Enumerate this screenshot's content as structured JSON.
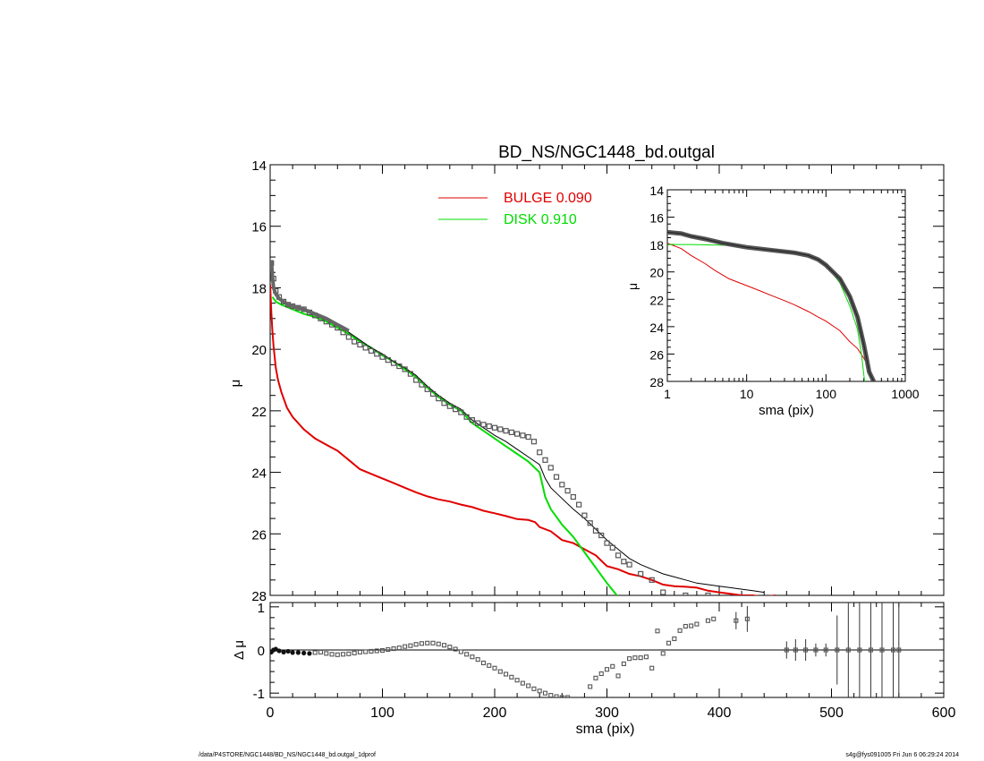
{
  "footer": {
    "left": "/data/P4STORE/NGC1448/BD_NS/NGC1448_bd.outgal_1dprof",
    "right": "s4g@fys091005  Fri Jun  6 06:29:24 2014"
  },
  "colors": {
    "bulge": "#e00000",
    "disk": "#00dd00",
    "total": "#000000",
    "data": "#555555"
  },
  "chart_data": [
    {
      "id": "main",
      "type": "scatter",
      "title": "BD_NS/NGC1448_bd.outgal",
      "xlabel": "",
      "ylabel": "μ",
      "xlim": [
        0,
        600
      ],
      "ylim": [
        28,
        14
      ],
      "yticks": [
        "14",
        "16",
        "18",
        "20",
        "22",
        "24",
        "26",
        "28"
      ],
      "legend": [
        {
          "label": "BULGE",
          "value": "0.090",
          "color": "#e00000"
        },
        {
          "label": "DISK",
          "value": "0.910",
          "color": "#00dd00"
        }
      ],
      "series": [
        {
          "name": "BULGE 0.090",
          "x": [
            0,
            1,
            2,
            3,
            5,
            7,
            10,
            15,
            20,
            30,
            40,
            50,
            60,
            70,
            80,
            90,
            100,
            110,
            120,
            130,
            140,
            150,
            160,
            170,
            180,
            190,
            200,
            210,
            220,
            230,
            236,
            240,
            250,
            260,
            270,
            280,
            290,
            300,
            310,
            320,
            330,
            340,
            350,
            360,
            370,
            380,
            390,
            400,
            410,
            420,
            430,
            440,
            450
          ],
          "y": [
            17.9,
            18.8,
            19.4,
            19.9,
            20.6,
            21.0,
            21.4,
            21.9,
            22.2,
            22.6,
            22.9,
            23.1,
            23.3,
            23.6,
            23.9,
            24.05,
            24.2,
            24.35,
            24.5,
            24.65,
            24.78,
            24.88,
            24.95,
            25.05,
            25.13,
            25.25,
            25.33,
            25.42,
            25.52,
            25.55,
            25.62,
            25.78,
            25.92,
            26.2,
            26.3,
            26.5,
            26.7,
            27.05,
            27.15,
            27.3,
            27.38,
            27.5,
            27.65,
            27.7,
            27.72,
            27.75,
            27.85,
            27.9,
            27.95,
            28.0,
            28.0,
            28.05,
            28.0
          ]
        },
        {
          "name": "DISK 0.910",
          "x": [
            2,
            5,
            10,
            20,
            30,
            40,
            50,
            60,
            70,
            80,
            90,
            100,
            110,
            120,
            130,
            140,
            150,
            160,
            170,
            180,
            190,
            200,
            210,
            220,
            230,
            240,
            245,
            250,
            260,
            270,
            280,
            290,
            300,
            310
          ],
          "y": [
            18.3,
            18.45,
            18.55,
            18.7,
            18.85,
            18.95,
            19.1,
            19.3,
            19.5,
            19.75,
            19.95,
            20.2,
            20.4,
            20.65,
            20.9,
            21.25,
            21.55,
            21.8,
            22.0,
            22.4,
            22.65,
            22.9,
            23.15,
            23.4,
            23.65,
            24.0,
            24.8,
            25.2,
            25.7,
            26.1,
            26.6,
            27.1,
            27.6,
            28.05
          ]
        },
        {
          "name": "",
          "x": [
            0,
            2,
            5,
            10,
            20,
            30,
            40,
            50,
            60,
            70,
            80,
            90,
            100,
            110,
            120,
            130,
            140,
            150,
            160,
            170,
            180,
            190,
            200,
            210,
            220,
            230,
            240,
            245,
            250,
            260,
            270,
            280,
            290,
            300,
            310,
            320,
            330,
            340,
            350,
            360,
            370,
            380,
            390,
            400,
            410,
            420,
            430,
            440
          ],
          "y": [
            17.1,
            17.6,
            18.2,
            18.4,
            18.6,
            18.75,
            18.9,
            19.05,
            19.2,
            19.45,
            19.7,
            19.95,
            20.15,
            20.4,
            20.6,
            20.85,
            21.2,
            21.5,
            21.75,
            21.95,
            22.3,
            22.55,
            22.8,
            23.0,
            23.25,
            23.5,
            23.75,
            24.2,
            24.5,
            24.85,
            25.2,
            25.5,
            25.85,
            26.2,
            26.5,
            26.8,
            27.0,
            27.15,
            27.3,
            27.4,
            27.5,
            27.6,
            27.65,
            27.7,
            27.75,
            27.8,
            27.85,
            27.9
          ]
        },
        {
          "name": "",
          "x": [
            1,
            3,
            5,
            8,
            12,
            16,
            20,
            25,
            30,
            35,
            40,
            45,
            50,
            55,
            60,
            65,
            70,
            75,
            80,
            85,
            90,
            95,
            100,
            105,
            110,
            115,
            120,
            125,
            130,
            135,
            140,
            145,
            150,
            155,
            160,
            165,
            170,
            175,
            180,
            185,
            190,
            195,
            200,
            205,
            210,
            215,
            220,
            225,
            230,
            235,
            240,
            245,
            250,
            255,
            260,
            265,
            270,
            275,
            280,
            285,
            290,
            295,
            300,
            305,
            310,
            315,
            320,
            330,
            340,
            350,
            370,
            390
          ],
          "y": [
            17.2,
            17.7,
            18.1,
            18.3,
            18.45,
            18.55,
            18.6,
            18.65,
            18.7,
            18.8,
            18.9,
            19.0,
            19.1,
            19.2,
            19.3,
            19.45,
            19.6,
            19.75,
            19.85,
            19.95,
            20.05,
            20.15,
            20.25,
            20.35,
            20.45,
            20.55,
            20.65,
            20.8,
            21.0,
            21.15,
            21.3,
            21.45,
            21.6,
            21.75,
            21.85,
            21.95,
            22.05,
            22.2,
            22.3,
            22.4,
            22.45,
            22.5,
            22.55,
            22.6,
            22.65,
            22.7,
            22.75,
            22.8,
            22.85,
            23.0,
            23.35,
            23.6,
            23.85,
            24.15,
            24.4,
            24.6,
            24.8,
            25.05,
            25.4,
            25.65,
            25.9,
            26.05,
            26.3,
            26.45,
            26.7,
            26.9,
            27.0,
            27.3,
            27.5,
            27.9,
            28.0,
            28.0
          ]
        }
      ]
    },
    {
      "id": "inset",
      "type": "line",
      "xlabel": "sma (pix)",
      "ylabel": "μ",
      "xscale": "log",
      "xlim": [
        1,
        1000
      ],
      "ylim": [
        28,
        14
      ],
      "xticks": [
        "1",
        "10",
        "100",
        "1000"
      ],
      "yticks": [
        "14",
        "16",
        "18",
        "20",
        "22",
        "24",
        "26",
        "28"
      ],
      "series": [
        {
          "name": "",
          "x": [
            1,
            1.5,
            2,
            3,
            4,
            6,
            10,
            15,
            20,
            30,
            40,
            60,
            80,
            100,
            150,
            200,
            250,
            300,
            350,
            400
          ],
          "y": [
            17.9,
            18.3,
            18.8,
            19.4,
            19.9,
            20.5,
            21.0,
            21.4,
            21.7,
            22.1,
            22.4,
            22.9,
            23.3,
            23.6,
            24.3,
            25.1,
            25.6,
            26.3,
            27.0,
            28.0
          ]
        },
        {
          "name": "",
          "x": [
            1,
            2,
            5,
            10,
            20,
            40,
            60,
            80,
            100,
            150,
            200,
            250,
            280,
            310
          ],
          "y": [
            18.0,
            18.0,
            18.05,
            18.1,
            18.4,
            18.65,
            18.9,
            19.1,
            19.5,
            20.8,
            22.5,
            24.2,
            26.0,
            28.2
          ]
        },
        {
          "name": "",
          "x": [
            1,
            1.5,
            2,
            3,
            5,
            10,
            20,
            40,
            60,
            80,
            100,
            150,
            200,
            250,
            300,
            330,
            350,
            400,
            450
          ],
          "y": [
            17.1,
            17.2,
            17.4,
            17.6,
            17.9,
            18.2,
            18.4,
            18.6,
            18.8,
            19.1,
            19.5,
            20.5,
            21.8,
            23.3,
            25.3,
            26.5,
            27.3,
            28.0,
            28.3
          ]
        }
      ]
    },
    {
      "id": "residual",
      "type": "scatter",
      "xlabel": "sma (pix)",
      "ylabel": "Δ μ",
      "xlim": [
        0,
        600
      ],
      "ylim": [
        -1.1,
        1.1
      ],
      "xticks": [
        "0",
        "100",
        "200",
        "300",
        "400",
        "500",
        "600"
      ],
      "yticks": [
        "1",
        "0",
        "-1"
      ],
      "series": [
        {
          "name": "",
          "x": [
            1,
            3,
            5,
            8,
            12,
            16,
            20,
            25,
            30,
            35,
            40,
            45,
            50,
            55,
            60,
            65,
            70,
            75,
            80,
            85,
            90,
            95,
            100,
            105,
            110,
            115,
            120,
            125,
            130,
            135,
            140,
            145,
            150,
            155,
            160,
            165,
            170,
            175,
            180,
            185,
            190,
            195,
            200,
            205,
            210,
            215,
            220,
            225,
            230,
            235,
            240,
            245,
            250,
            255,
            260,
            265,
            285,
            290,
            295,
            300,
            305,
            310,
            315,
            320,
            325,
            330,
            335,
            340,
            345,
            350,
            355,
            360,
            365,
            370,
            375,
            380,
            390,
            395,
            415,
            425,
            460,
            468,
            477,
            486,
            495,
            505,
            515,
            525,
            535,
            545,
            555,
            560
          ],
          "y": [
            -0.05,
            0.0,
            0.02,
            -0.02,
            -0.05,
            -0.03,
            -0.06,
            -0.06,
            -0.07,
            -0.08,
            -0.06,
            -0.05,
            -0.08,
            -0.1,
            -0.11,
            -0.1,
            -0.09,
            -0.07,
            -0.05,
            -0.04,
            -0.03,
            -0.02,
            -0.01,
            0.01,
            0.03,
            0.05,
            0.08,
            0.1,
            0.13,
            0.15,
            0.16,
            0.16,
            0.14,
            0.11,
            0.07,
            0.02,
            -0.04,
            -0.1,
            -0.16,
            -0.22,
            -0.3,
            -0.36,
            -0.42,
            -0.5,
            -0.56,
            -0.63,
            -0.7,
            -0.77,
            -0.83,
            -0.9,
            -0.95,
            -1.0,
            -1.05,
            -1.08,
            -1.1,
            -1.1,
            -0.85,
            -0.65,
            -0.55,
            -0.45,
            -0.38,
            -0.6,
            -0.32,
            -0.2,
            -0.18,
            -0.18,
            -0.16,
            -0.42,
            0.44,
            -0.08,
            0.16,
            0.26,
            0.45,
            0.55,
            0.56,
            0.6,
            0.68,
            0.72,
            0.68,
            0.72,
            0.0,
            0.0,
            0.0,
            0.0,
            0.0,
            0.0,
            0.0,
            0.0,
            0.0,
            0.0,
            0.0,
            0.0
          ],
          "err": [
            0,
            0,
            0,
            0,
            0,
            0,
            0,
            0,
            0,
            0,
            0,
            0,
            0,
            0,
            0,
            0,
            0,
            0,
            0,
            0,
            0,
            0,
            0,
            0,
            0,
            0,
            0,
            0,
            0,
            0,
            0,
            0,
            0,
            0,
            0,
            0,
            0,
            0,
            0,
            0,
            0,
            0,
            0,
            0,
            0,
            0,
            0,
            0,
            0,
            0,
            0,
            0,
            0,
            0,
            0,
            0,
            0,
            0,
            0,
            0,
            0,
            0,
            0,
            0,
            0,
            0,
            0,
            0,
            0,
            0,
            0,
            0,
            0,
            0,
            0,
            0,
            0,
            0,
            0.2,
            0.3,
            0.2,
            0.25,
            0.25,
            0.15,
            0.15,
            0.8,
            1.1,
            1.1,
            1.1,
            1.1,
            1.1,
            1.1
          ]
        }
      ]
    }
  ]
}
